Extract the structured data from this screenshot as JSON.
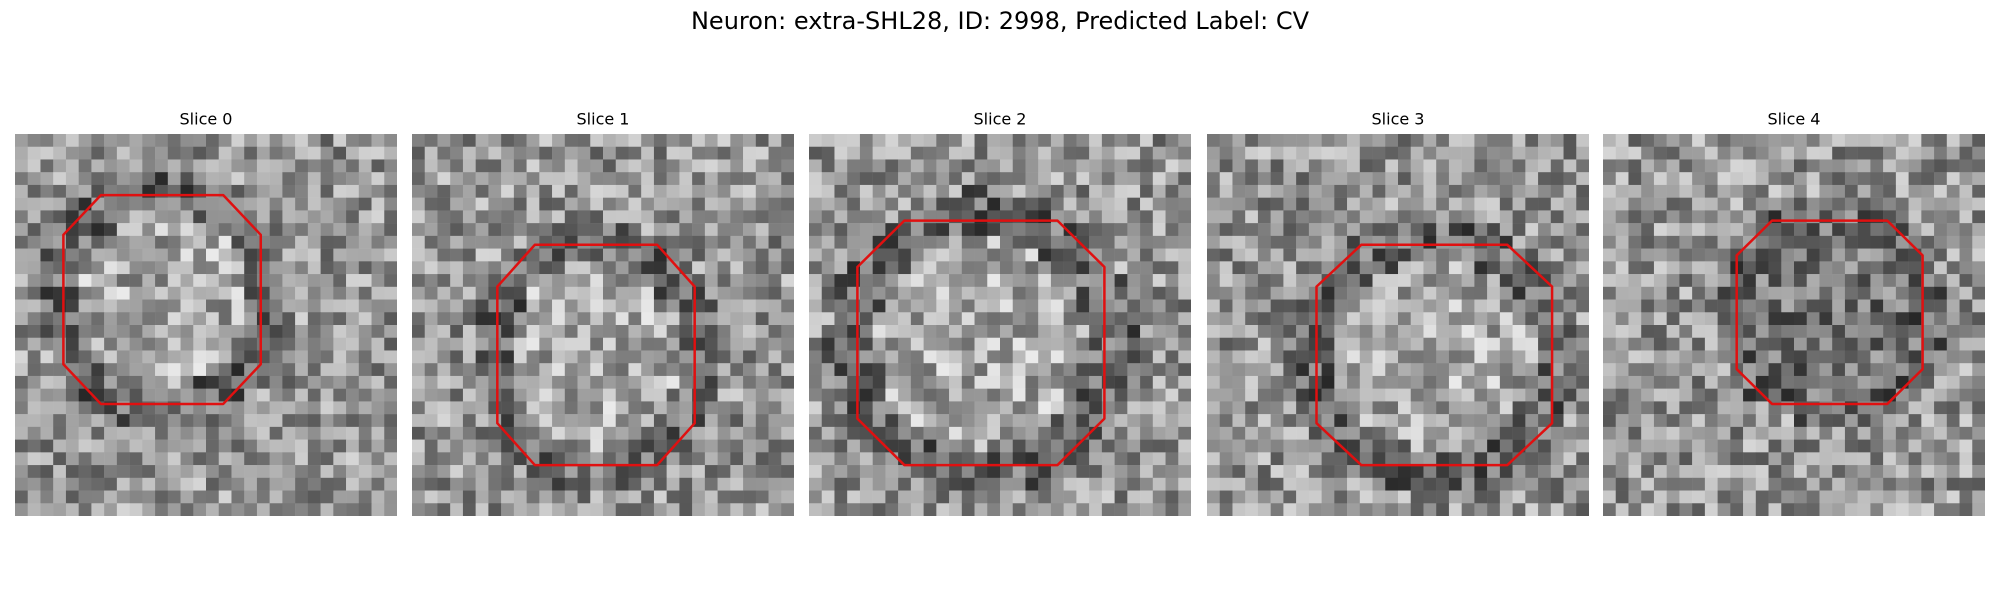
{
  "title": "Neuron: extra-SHL28, ID: 2998, Predicted Label: CV",
  "panels": [
    {
      "title": "Slice 0"
    },
    {
      "title": "Slice 1"
    },
    {
      "title": "Slice 2"
    },
    {
      "title": "Slice 3"
    },
    {
      "title": "Slice 4"
    }
  ]
}
